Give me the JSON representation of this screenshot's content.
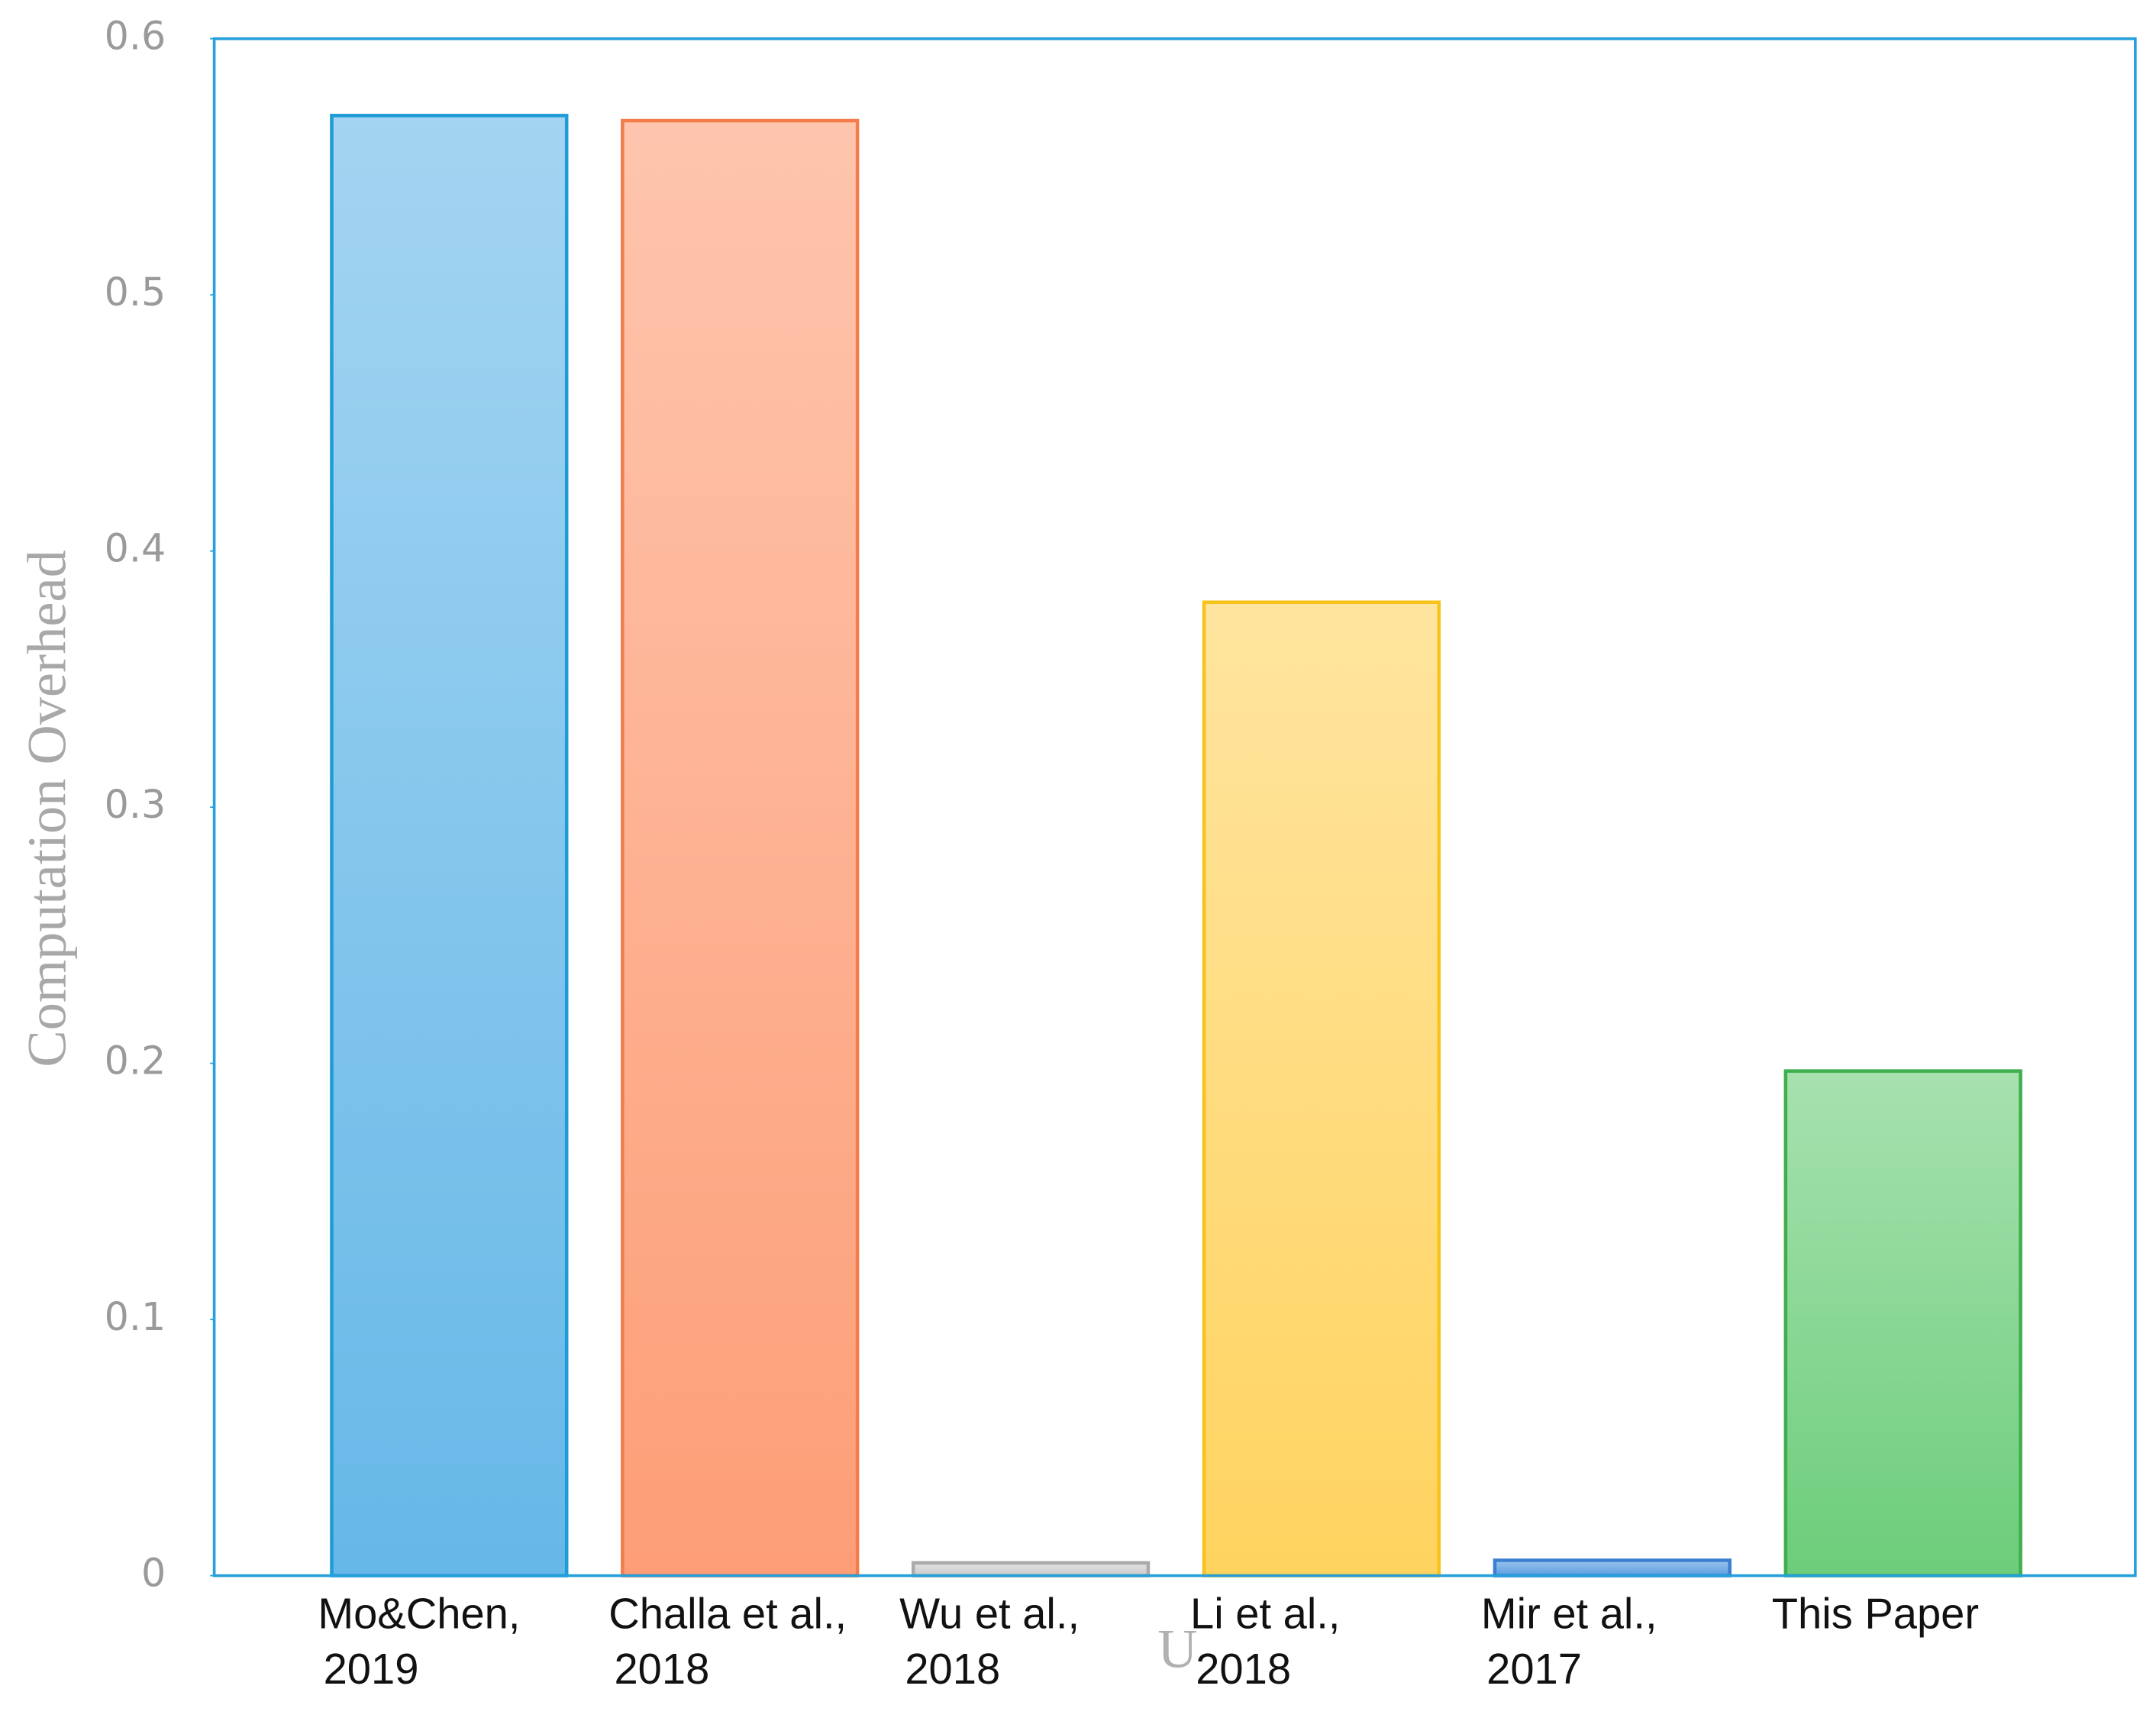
{
  "chart_data": {
    "type": "bar",
    "y_label": "Computation Overhead",
    "categories": [
      [
        "Mo&Chen,",
        "2019"
      ],
      [
        "Challa et al.,",
        "2018"
      ],
      [
        "Wu et al.,",
        "2018"
      ],
      [
        "Li et al.,",
        "2018"
      ],
      [
        "Mir et al.,",
        "2017"
      ],
      [
        "This Paper"
      ]
    ],
    "values": [
      0.57,
      0.568,
      0.005,
      0.38,
      0.006,
      0.197
    ],
    "colors": [
      "#66b8e8",
      "#fd9e77",
      "#cccccc",
      "#ffd35f",
      "#5b9de2",
      "#6ccd7a"
    ],
    "edge_colors": [
      "#1f9bd7",
      "#f47c4a",
      "#aaaaaa",
      "#f7c21a",
      "#3b7fd0",
      "#3fae4c"
    ],
    "frame_color": "#25a0da",
    "ylim": [
      0,
      0.6
    ],
    "yticks": [
      0,
      0.1,
      0.2,
      0.3,
      0.4,
      0.5,
      0.6
    ],
    "annotation": "U"
  }
}
